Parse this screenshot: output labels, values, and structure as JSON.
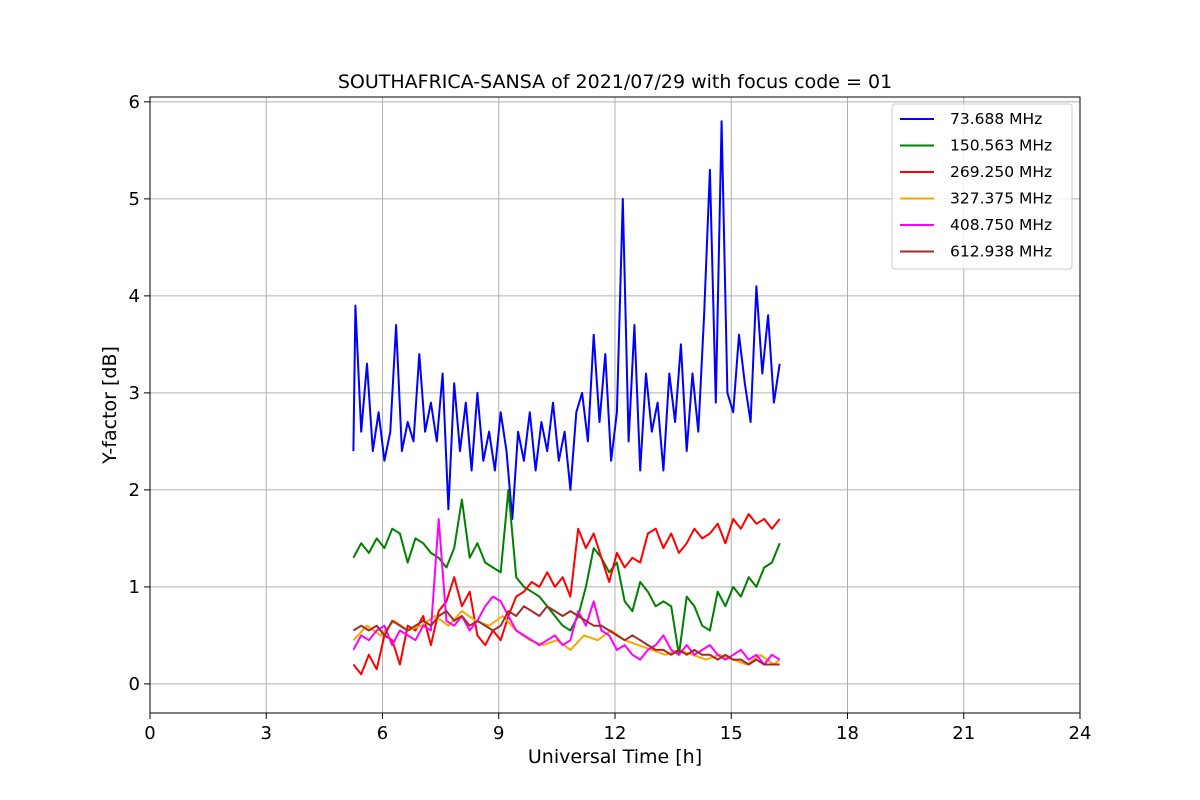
{
  "chart_data": {
    "type": "line",
    "title": "SOUTHAFRICA-SANSA of 2021/07/29 with focus code = 01",
    "xlabel": "Universal Time [h]",
    "ylabel": "Y-factor [dB]",
    "xlim": [
      0,
      24
    ],
    "ylim": [
      -0.3,
      6.05
    ],
    "xticks": [
      "0",
      "3",
      "6",
      "9",
      "12",
      "15",
      "18",
      "21",
      "24"
    ],
    "yticks": [
      "0",
      "1",
      "2",
      "3",
      "4",
      "5",
      "6"
    ],
    "grid": true,
    "legend_position": "top-right",
    "series": [
      {
        "name": "  73.688 MHz",
        "color": "#0000ff",
        "x": [
          5.25,
          5.3,
          5.45,
          5.6,
          5.75,
          5.9,
          6.05,
          6.2,
          6.35,
          6.5,
          6.65,
          6.8,
          6.95,
          7.1,
          7.25,
          7.4,
          7.55,
          7.7,
          7.85,
          8.0,
          8.15,
          8.3,
          8.45,
          8.6,
          8.75,
          8.9,
          9.05,
          9.2,
          9.35,
          9.5,
          9.65,
          9.8,
          9.95,
          10.1,
          10.25,
          10.4,
          10.55,
          10.7,
          10.85,
          11.0,
          11.15,
          11.3,
          11.45,
          11.6,
          11.75,
          11.9,
          12.05,
          12.2,
          12.35,
          12.5,
          12.65,
          12.8,
          12.95,
          13.1,
          13.25,
          13.4,
          13.55,
          13.7,
          13.85,
          14.0,
          14.15,
          14.3,
          14.45,
          14.6,
          14.75,
          14.9,
          15.05,
          15.2,
          15.35,
          15.5,
          15.65,
          15.8,
          15.95,
          16.1,
          16.25
        ],
        "y": [
          2.4,
          3.9,
          2.6,
          3.3,
          2.4,
          2.8,
          2.3,
          2.6,
          3.7,
          2.4,
          2.7,
          2.5,
          3.4,
          2.6,
          2.9,
          2.5,
          3.2,
          1.8,
          3.1,
          2.4,
          2.9,
          2.2,
          3.0,
          2.3,
          2.6,
          2.2,
          2.8,
          2.4,
          1.7,
          2.6,
          2.3,
          2.8,
          2.2,
          2.7,
          2.4,
          2.9,
          2.3,
          2.6,
          2.0,
          2.8,
          3.0,
          2.5,
          3.6,
          2.7,
          3.4,
          2.3,
          2.8,
          5.0,
          2.5,
          3.7,
          2.2,
          3.2,
          2.6,
          2.9,
          2.2,
          3.2,
          2.7,
          3.5,
          2.4,
          3.2,
          2.6,
          3.8,
          5.3,
          2.9,
          5.8,
          3.0,
          2.8,
          3.6,
          3.1,
          2.7,
          4.1,
          3.2,
          3.8,
          2.9,
          3.3
        ]
      },
      {
        "name": "150.563 MHz",
        "color": "#008000",
        "x": [
          5.25,
          5.45,
          5.65,
          5.85,
          6.05,
          6.25,
          6.45,
          6.65,
          6.85,
          7.05,
          7.25,
          7.45,
          7.65,
          7.85,
          8.05,
          8.25,
          8.45,
          8.65,
          8.85,
          9.05,
          9.25,
          9.45,
          9.65,
          9.85,
          10.05,
          10.25,
          10.45,
          10.65,
          10.85,
          11.05,
          11.25,
          11.45,
          11.65,
          11.85,
          12.05,
          12.25,
          12.45,
          12.65,
          12.85,
          13.05,
          13.25,
          13.45,
          13.65,
          13.85,
          14.05,
          14.25,
          14.45,
          14.65,
          14.85,
          15.05,
          15.25,
          15.45,
          15.65,
          15.85,
          16.05,
          16.25
        ],
        "y": [
          1.3,
          1.45,
          1.35,
          1.5,
          1.4,
          1.6,
          1.55,
          1.25,
          1.5,
          1.45,
          1.35,
          1.3,
          1.2,
          1.4,
          1.9,
          1.3,
          1.45,
          1.25,
          1.2,
          1.15,
          2.0,
          1.1,
          1.0,
          0.95,
          0.9,
          0.8,
          0.7,
          0.6,
          0.55,
          0.7,
          1.0,
          1.4,
          1.3,
          1.15,
          1.25,
          0.85,
          0.75,
          1.05,
          0.95,
          0.8,
          0.85,
          0.8,
          0.3,
          0.9,
          0.8,
          0.6,
          0.55,
          0.95,
          0.8,
          1.0,
          0.9,
          1.1,
          1.0,
          1.2,
          1.25,
          1.45
        ]
      },
      {
        "name": "269.250 MHz",
        "color": "#ff0000",
        "x": [
          5.25,
          5.45,
          5.65,
          5.85,
          6.05,
          6.25,
          6.45,
          6.65,
          6.85,
          7.05,
          7.25,
          7.45,
          7.65,
          7.85,
          8.05,
          8.25,
          8.45,
          8.65,
          8.85,
          9.05,
          9.25,
          9.45,
          9.65,
          9.85,
          10.05,
          10.25,
          10.45,
          10.65,
          10.85,
          11.05,
          11.25,
          11.45,
          11.65,
          11.85,
          12.05,
          12.25,
          12.45,
          12.65,
          12.85,
          13.05,
          13.25,
          13.45,
          13.65,
          13.85,
          14.05,
          14.25,
          14.45,
          14.65,
          14.85,
          15.05,
          15.25,
          15.45,
          15.65,
          15.85,
          16.05,
          16.25
        ],
        "y": [
          0.2,
          0.1,
          0.3,
          0.15,
          0.5,
          0.45,
          0.2,
          0.6,
          0.55,
          0.7,
          0.4,
          0.75,
          0.85,
          1.1,
          0.8,
          0.95,
          0.5,
          0.4,
          0.55,
          0.45,
          0.7,
          0.9,
          0.95,
          1.05,
          1.0,
          1.15,
          1.0,
          1.1,
          0.9,
          1.6,
          1.4,
          1.55,
          1.3,
          1.05,
          1.35,
          1.2,
          1.3,
          1.25,
          1.55,
          1.6,
          1.4,
          1.55,
          1.35,
          1.45,
          1.6,
          1.5,
          1.55,
          1.65,
          1.45,
          1.7,
          1.6,
          1.75,
          1.65,
          1.7,
          1.6,
          1.7
        ]
      },
      {
        "name": "327.375 MHz",
        "color": "#ffa500",
        "x": [
          5.25,
          5.6,
          5.95,
          6.3,
          6.65,
          7.0,
          7.35,
          7.7,
          8.05,
          8.4,
          8.75,
          9.1,
          9.45,
          9.8,
          10.15,
          10.5,
          10.85,
          11.2,
          11.55,
          11.9,
          12.25,
          12.6,
          12.95,
          13.3,
          13.65,
          14.0,
          14.35,
          14.7,
          15.05,
          15.4,
          15.75,
          16.1,
          16.25
        ],
        "y": [
          0.45,
          0.6,
          0.5,
          0.65,
          0.55,
          0.6,
          0.7,
          0.6,
          0.75,
          0.65,
          0.6,
          0.7,
          0.55,
          0.45,
          0.4,
          0.45,
          0.35,
          0.5,
          0.45,
          0.55,
          0.45,
          0.4,
          0.35,
          0.3,
          0.35,
          0.3,
          0.25,
          0.3,
          0.25,
          0.2,
          0.3,
          0.2,
          0.25
        ]
      },
      {
        "name": "408.750 MHz",
        "color": "#ff00ff",
        "x": [
          5.25,
          5.45,
          5.65,
          5.85,
          6.05,
          6.25,
          6.45,
          6.65,
          6.85,
          7.05,
          7.25,
          7.45,
          7.65,
          7.85,
          8.05,
          8.25,
          8.45,
          8.65,
          8.85,
          9.05,
          9.25,
          9.45,
          9.65,
          9.85,
          10.05,
          10.25,
          10.45,
          10.65,
          10.85,
          11.05,
          11.25,
          11.45,
          11.65,
          11.85,
          12.05,
          12.25,
          12.45,
          12.65,
          12.85,
          13.05,
          13.25,
          13.45,
          13.65,
          13.85,
          14.05,
          14.25,
          14.45,
          14.65,
          14.85,
          15.05,
          15.25,
          15.45,
          15.65,
          15.85,
          16.05,
          16.25
        ],
        "y": [
          0.35,
          0.5,
          0.45,
          0.55,
          0.6,
          0.4,
          0.55,
          0.5,
          0.45,
          0.6,
          0.55,
          1.7,
          0.65,
          0.6,
          0.7,
          0.55,
          0.65,
          0.8,
          0.9,
          0.85,
          0.7,
          0.55,
          0.5,
          0.45,
          0.4,
          0.45,
          0.5,
          0.4,
          0.45,
          0.75,
          0.6,
          0.85,
          0.55,
          0.5,
          0.35,
          0.4,
          0.3,
          0.25,
          0.35,
          0.4,
          0.5,
          0.35,
          0.3,
          0.4,
          0.3,
          0.35,
          0.4,
          0.3,
          0.25,
          0.3,
          0.35,
          0.25,
          0.3,
          0.2,
          0.3,
          0.25
        ]
      },
      {
        "name": "612.938 MHz",
        "color": "#a52a2a",
        "x": [
          5.25,
          5.45,
          5.65,
          5.85,
          6.05,
          6.25,
          6.45,
          6.65,
          6.85,
          7.05,
          7.25,
          7.45,
          7.65,
          7.85,
          8.05,
          8.25,
          8.45,
          8.65,
          8.85,
          9.05,
          9.25,
          9.45,
          9.65,
          9.85,
          10.05,
          10.25,
          10.45,
          10.65,
          10.85,
          11.05,
          11.25,
          11.45,
          11.65,
          11.85,
          12.05,
          12.25,
          12.45,
          12.65,
          12.85,
          13.05,
          13.25,
          13.45,
          13.65,
          13.85,
          14.05,
          14.25,
          14.45,
          14.65,
          14.85,
          15.05,
          15.25,
          15.45,
          15.65,
          15.85,
          16.05,
          16.25
        ],
        "y": [
          0.55,
          0.6,
          0.55,
          0.6,
          0.5,
          0.65,
          0.6,
          0.55,
          0.6,
          0.65,
          0.6,
          0.7,
          0.75,
          0.65,
          0.7,
          0.6,
          0.65,
          0.6,
          0.55,
          0.6,
          0.75,
          0.7,
          0.8,
          0.75,
          0.7,
          0.8,
          0.75,
          0.7,
          0.75,
          0.7,
          0.65,
          0.6,
          0.6,
          0.55,
          0.5,
          0.45,
          0.5,
          0.45,
          0.4,
          0.35,
          0.35,
          0.3,
          0.35,
          0.3,
          0.35,
          0.3,
          0.3,
          0.25,
          0.3,
          0.25,
          0.25,
          0.2,
          0.25,
          0.2,
          0.2,
          0.2
        ]
      }
    ]
  }
}
